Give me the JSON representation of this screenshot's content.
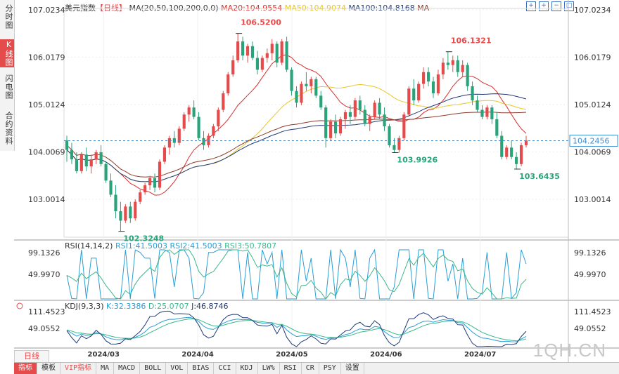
{
  "sidebar": {
    "tabs": [
      "分时图",
      "K线图",
      "闪电图",
      "合约资料"
    ],
    "active": 1
  },
  "header": {
    "symbol": "美元指数",
    "period_tag": "【日线】",
    "ma_params": "MA(20,50,100,200,0,0)",
    "ma20": "MA20:104.9554",
    "ma50": "MA50:104.9074",
    "ma100": "MA100:104.8168",
    "ma": "MA"
  },
  "rsi_header": {
    "name": "RSI(14,14,2)",
    "rsi1": "RSI1:41.5003",
    "rsi2": "RSI2:41.5003",
    "rsi3": "RSI3:50.7807"
  },
  "kdj_header": {
    "name": "KDJ(9,3,3)",
    "k": "K:32.3386",
    "d": "D:25.0707",
    "j": "J:46.8746"
  },
  "period_button": "日线",
  "bottom_tabs": [
    "指标",
    "模板",
    "VIP指标",
    "MA",
    "MACD",
    "BOLL",
    "VOL",
    "BIAS",
    "CCI",
    "KDJ",
    "LW%",
    "RSI",
    "CR",
    "PSY",
    "设置"
  ],
  "watermark": "1QH.CN",
  "colors": {
    "up": "#e64b4b",
    "down": "#2aa37a",
    "ma20": "#d92d2d",
    "ma50": "#e8c820",
    "ma100": "#1f3a78",
    "ma200": "#8b3a2a",
    "rsi1": "#2a9fd6",
    "rsi3": "#3ab88a"
  },
  "icons": [
    "crosshair-icon",
    "zoom-in-icon",
    "zoom-out-icon",
    "fullscreen-icon",
    "settings-icon"
  ],
  "chart_data": {
    "type": "candlestick",
    "y_ticks": [
      "107.0234",
      "106.0179",
      "105.0124",
      "104.0069",
      "103.0014"
    ],
    "y_range": [
      102.2,
      107.05
    ],
    "x_labels": [
      "2024/03",
      "2024/04",
      "2024/05",
      "2024/06",
      "2024/07"
    ],
    "current_price": "104.2456",
    "annotations": {
      "high1": "106.5200",
      "low1": "102.3248",
      "low2": "103.9926",
      "high2": "106.1321",
      "low3": "103.6435"
    },
    "candles": [
      [
        104.25,
        104.35,
        103.8,
        104.05
      ],
      [
        104.05,
        104.2,
        103.75,
        103.85
      ],
      [
        103.85,
        104.0,
        103.55,
        103.6
      ],
      [
        103.6,
        104.0,
        103.55,
        103.95
      ],
      [
        103.95,
        104.1,
        103.6,
        103.7
      ],
      [
        103.7,
        103.95,
        103.55,
        103.85
      ],
      [
        103.85,
        104.05,
        103.75,
        104.0
      ],
      [
        104.0,
        104.15,
        103.7,
        103.75
      ],
      [
        103.75,
        103.8,
        103.35,
        103.4
      ],
      [
        103.4,
        103.55,
        103.05,
        103.1
      ],
      [
        103.1,
        103.3,
        102.6,
        102.75
      ],
      [
        102.75,
        102.95,
        102.32,
        102.55
      ],
      [
        102.55,
        102.9,
        102.5,
        102.85
      ],
      [
        102.85,
        102.95,
        102.5,
        102.6
      ],
      [
        102.6,
        103.0,
        102.55,
        102.95
      ],
      [
        102.95,
        103.2,
        102.9,
        103.15
      ],
      [
        103.15,
        103.35,
        103.1,
        103.3
      ],
      [
        103.3,
        103.5,
        103.2,
        103.45
      ],
      [
        103.45,
        103.55,
        103.15,
        103.25
      ],
      [
        103.25,
        103.85,
        103.2,
        103.8
      ],
      [
        103.8,
        104.15,
        103.75,
        104.1
      ],
      [
        104.1,
        104.35,
        103.95,
        104.3
      ],
      [
        104.3,
        104.45,
        104.1,
        104.2
      ],
      [
        104.2,
        104.55,
        104.15,
        104.5
      ],
      [
        104.5,
        104.85,
        104.45,
        104.8
      ],
      [
        104.8,
        105.0,
        104.65,
        104.95
      ],
      [
        104.95,
        105.1,
        104.7,
        104.75
      ],
      [
        104.75,
        104.85,
        104.25,
        104.3
      ],
      [
        104.3,
        104.45,
        104.05,
        104.15
      ],
      [
        104.15,
        104.4,
        104.1,
        104.35
      ],
      [
        104.35,
        104.6,
        104.3,
        104.55
      ],
      [
        104.55,
        104.95,
        104.45,
        104.9
      ],
      [
        104.9,
        105.3,
        104.85,
        105.25
      ],
      [
        105.25,
        105.7,
        105.2,
        105.65
      ],
      [
        105.65,
        106.05,
        105.6,
        105.95
      ],
      [
        105.95,
        106.52,
        105.9,
        106.35
      ],
      [
        106.35,
        106.45,
        105.95,
        106.05
      ],
      [
        106.05,
        106.3,
        105.9,
        106.25
      ],
      [
        106.25,
        106.35,
        105.95,
        106.0
      ],
      [
        106.0,
        106.15,
        105.65,
        105.75
      ],
      [
        105.75,
        106.05,
        105.7,
        106.0
      ],
      [
        106.0,
        106.2,
        105.9,
        106.1
      ],
      [
        106.1,
        106.4,
        105.95,
        106.3
      ],
      [
        106.3,
        106.35,
        105.8,
        105.9
      ],
      [
        105.9,
        106.4,
        105.85,
        106.35
      ],
      [
        106.35,
        106.45,
        105.7,
        105.75
      ],
      [
        105.75,
        105.8,
        105.2,
        105.3
      ],
      [
        105.3,
        105.4,
        104.95,
        105.05
      ],
      [
        105.05,
        105.5,
        105.0,
        105.45
      ],
      [
        105.45,
        105.7,
        105.3,
        105.4
      ],
      [
        105.4,
        105.6,
        105.25,
        105.55
      ],
      [
        105.55,
        105.6,
        105.15,
        105.2
      ],
      [
        105.2,
        105.3,
        104.9,
        104.95
      ],
      [
        104.95,
        105.0,
        104.1,
        104.3
      ],
      [
        104.3,
        104.7,
        104.25,
        104.65
      ],
      [
        104.65,
        104.8,
        104.3,
        104.4
      ],
      [
        104.4,
        104.75,
        104.35,
        104.7
      ],
      [
        104.7,
        104.9,
        104.5,
        104.85
      ],
      [
        104.85,
        105.0,
        104.6,
        104.75
      ],
      [
        104.75,
        105.15,
        104.7,
        105.1
      ],
      [
        105.1,
        105.2,
        104.8,
        104.9
      ],
      [
        104.9,
        105.0,
        104.55,
        104.6
      ],
      [
        104.6,
        104.8,
        104.45,
        104.75
      ],
      [
        104.75,
        105.1,
        104.7,
        105.05
      ],
      [
        105.05,
        105.15,
        104.7,
        104.8
      ],
      [
        104.8,
        104.95,
        104.45,
        104.55
      ],
      [
        104.55,
        104.6,
        104.1,
        104.15
      ],
      [
        104.15,
        104.3,
        103.99,
        104.05
      ],
      [
        104.05,
        104.35,
        103.99,
        104.3
      ],
      [
        104.3,
        104.85,
        104.25,
        104.8
      ],
      [
        104.8,
        105.4,
        104.75,
        105.35
      ],
      [
        105.35,
        105.55,
        105.0,
        105.1
      ],
      [
        105.1,
        105.5,
        105.05,
        105.45
      ],
      [
        105.45,
        105.8,
        105.35,
        105.7
      ],
      [
        105.7,
        105.8,
        105.4,
        105.5
      ],
      [
        105.5,
        105.6,
        105.15,
        105.25
      ],
      [
        105.25,
        105.75,
        105.2,
        105.65
      ],
      [
        105.65,
        106.0,
        105.55,
        105.9
      ],
      [
        105.9,
        106.13,
        105.75,
        105.85
      ],
      [
        105.85,
        106.05,
        105.7,
        105.95
      ],
      [
        105.95,
        106.05,
        105.6,
        105.7
      ],
      [
        105.7,
        105.95,
        105.6,
        105.85
      ],
      [
        105.85,
        105.9,
        105.3,
        105.4
      ],
      [
        105.4,
        105.5,
        105.0,
        105.1
      ],
      [
        105.1,
        105.2,
        104.85,
        104.9
      ],
      [
        104.9,
        105.0,
        104.7,
        104.75
      ],
      [
        104.75,
        105.0,
        104.7,
        104.95
      ],
      [
        104.95,
        105.0,
        104.6,
        104.7
      ],
      [
        104.7,
        104.85,
        104.3,
        104.35
      ],
      [
        104.35,
        104.45,
        103.85,
        103.9
      ],
      [
        103.9,
        104.15,
        103.85,
        104.1
      ],
      [
        104.1,
        104.25,
        103.85,
        103.9
      ],
      [
        103.9,
        104.0,
        103.64,
        103.75
      ],
      [
        103.75,
        104.2,
        103.7,
        104.15
      ],
      [
        104.15,
        104.35,
        104.1,
        104.25
      ]
    ]
  }
}
